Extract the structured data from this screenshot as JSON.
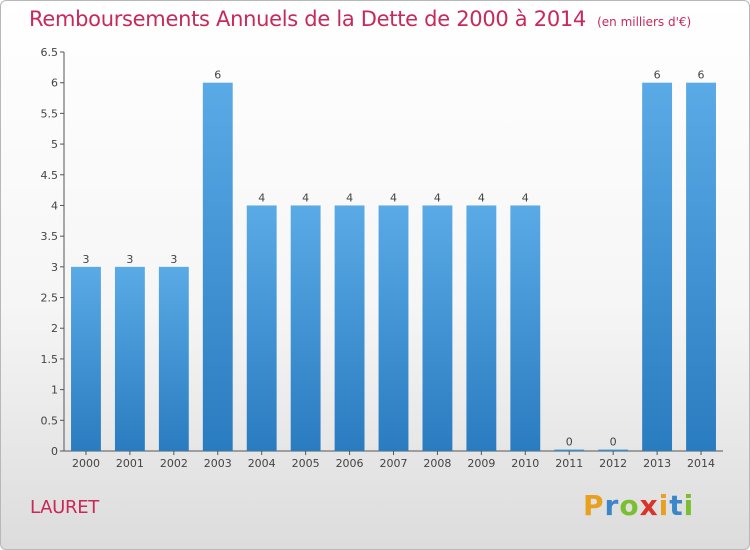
{
  "header": {
    "title": "Remboursements Annuels de la Dette de 2000 à 2014",
    "unit": "(en milliers d'€)"
  },
  "footer": {
    "commune": "LAURET",
    "logo_letters": [
      "P",
      "r",
      "o",
      "x",
      "i",
      "t",
      "i"
    ],
    "logo_colors": [
      "#e8a020",
      "#3a86c8",
      "#7bbf30",
      "#d8342c",
      "#e8a020",
      "#3a86c8",
      "#7bbf30"
    ]
  },
  "colors": {
    "title": "#c8285a",
    "bar_light": "#5aaae6",
    "bar_dark": "#2a7cc0",
    "axis": "#555555",
    "grid": "#d0d0d0"
  },
  "chart_data": {
    "type": "bar",
    "title": "Remboursements Annuels de la Dette de 2000 à 2014",
    "categories": [
      "2000",
      "2001",
      "2002",
      "2003",
      "2004",
      "2005",
      "2006",
      "2007",
      "2008",
      "2009",
      "2010",
      "2011",
      "2012",
      "2013",
      "2014"
    ],
    "values": [
      3,
      3,
      3,
      6,
      4,
      4,
      4,
      4,
      4,
      4,
      4,
      0,
      0,
      6,
      6
    ],
    "data_labels": [
      "3",
      "3",
      "3",
      "6",
      "4",
      "4",
      "4",
      "4",
      "4",
      "4",
      "4",
      "0",
      "0",
      "6",
      "6"
    ],
    "ylim": [
      0,
      6.5
    ],
    "yticks": [
      "0",
      "0.5",
      "1",
      "1.5",
      "2",
      "2.5",
      "3",
      "3.5",
      "4",
      "4.5",
      "5",
      "5.5",
      "6",
      "6.5"
    ],
    "grid": false
  }
}
